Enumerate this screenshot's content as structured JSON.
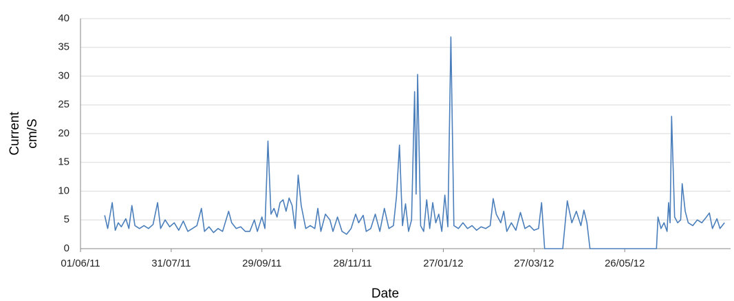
{
  "chart_data": {
    "type": "line",
    "xlabel": "Date",
    "ylabel": [
      "Current",
      "cm/S"
    ],
    "color": "#4a7ebb",
    "grid": true,
    "xlim": [
      "2011-06-01",
      "2012-08-04"
    ],
    "xticks": [
      {
        "value": "2011-06-01",
        "label": "01/06/11"
      },
      {
        "value": "2011-07-31",
        "label": "31/07/11"
      },
      {
        "value": "2011-09-29",
        "label": "29/09/11"
      },
      {
        "value": "2011-11-28",
        "label": "28/11/11"
      },
      {
        "value": "2012-01-27",
        "label": "27/01/12"
      },
      {
        "value": "2012-03-27",
        "label": "27/03/12"
      },
      {
        "value": "2012-05-26",
        "label": "26/05/12"
      }
    ],
    "ylim": [
      0,
      40
    ],
    "yticks": [
      0,
      5,
      10,
      15,
      20,
      25,
      30,
      35,
      40
    ],
    "x": [
      "2011-06-17",
      "2011-06-19",
      "2011-06-22",
      "2011-06-24",
      "2011-06-26",
      "2011-06-28",
      "2011-07-01",
      "2011-07-03",
      "2011-07-05",
      "2011-07-07",
      "2011-07-10",
      "2011-07-13",
      "2011-07-16",
      "2011-07-19",
      "2011-07-22",
      "2011-07-24",
      "2011-07-27",
      "2011-07-30",
      "2011-08-02",
      "2011-08-05",
      "2011-08-08",
      "2011-08-11",
      "2011-08-14",
      "2011-08-17",
      "2011-08-20",
      "2011-08-22",
      "2011-08-25",
      "2011-08-28",
      "2011-08-31",
      "2011-09-03",
      "2011-09-07",
      "2011-09-09",
      "2011-09-12",
      "2011-09-15",
      "2011-09-18",
      "2011-09-21",
      "2011-09-24",
      "2011-09-26",
      "2011-09-29",
      "2011-10-01",
      "2011-10-03",
      "2011-10-05",
      "2011-10-07",
      "2011-10-09",
      "2011-10-11",
      "2011-10-13",
      "2011-10-15",
      "2011-10-17",
      "2011-10-19",
      "2011-10-21",
      "2011-10-23",
      "2011-10-25",
      "2011-10-28",
      "2011-10-31",
      "2011-11-03",
      "2011-11-05",
      "2011-11-07",
      "2011-11-10",
      "2011-11-13",
      "2011-11-15",
      "2011-11-18",
      "2011-11-21",
      "2011-11-24",
      "2011-11-27",
      "2011-11-30",
      "2011-12-02",
      "2011-12-05",
      "2011-12-07",
      "2011-12-10",
      "2011-12-13",
      "2011-12-16",
      "2011-12-19",
      "2011-12-22",
      "2011-12-25",
      "2011-12-27",
      "2011-12-29",
      "2011-12-31",
      "2012-01-02",
      "2012-01-04",
      "2012-01-06",
      "2012-01-08",
      "2012-01-09",
      "2012-01-10",
      "2012-01-12",
      "2012-01-14",
      "2012-01-16",
      "2012-01-18",
      "2012-01-20",
      "2012-01-22",
      "2012-01-24",
      "2012-01-26",
      "2012-01-28",
      "2012-01-30",
      "2012-02-01",
      "2012-02-03",
      "2012-02-06",
      "2012-02-09",
      "2012-02-12",
      "2012-02-15",
      "2012-02-18",
      "2012-02-21",
      "2012-02-24",
      "2012-02-27",
      "2012-02-29",
      "2012-03-02",
      "2012-03-05",
      "2012-03-07",
      "2012-03-09",
      "2012-03-12",
      "2012-03-15",
      "2012-03-18",
      "2012-03-21",
      "2012-03-24",
      "2012-03-27",
      "2012-03-30",
      "2012-04-01",
      "2012-04-03",
      "2012-04-15",
      "2012-04-18",
      "2012-04-21",
      "2012-04-24",
      "2012-04-27",
      "2012-04-29",
      "2012-05-01",
      "2012-05-03",
      "2012-06-16",
      "2012-06-17",
      "2012-06-19",
      "2012-06-21",
      "2012-06-23",
      "2012-06-24",
      "2012-06-25",
      "2012-06-26",
      "2012-06-28",
      "2012-06-30",
      "2012-07-02",
      "2012-07-03",
      "2012-07-05",
      "2012-07-07",
      "2012-07-10",
      "2012-07-13",
      "2012-07-16",
      "2012-07-19",
      "2012-07-21",
      "2012-07-23",
      "2012-07-26",
      "2012-07-28",
      "2012-07-31"
    ],
    "values": [
      5.8,
      3.5,
      8.0,
      3.2,
      4.5,
      3.8,
      5.2,
      3.5,
      7.5,
      4.0,
      3.5,
      4.0,
      3.5,
      4.2,
      8.0,
      3.5,
      5.0,
      3.8,
      4.5,
      3.2,
      4.8,
      3.0,
      3.5,
      4.0,
      7.0,
      3.0,
      3.8,
      2.8,
      3.5,
      3.0,
      6.5,
      4.5,
      3.5,
      3.8,
      3.0,
      3.0,
      5.0,
      3.0,
      5.5,
      3.5,
      18.7,
      6.0,
      7.0,
      5.5,
      8.0,
      8.5,
      6.5,
      8.8,
      7.5,
      3.5,
      12.8,
      7.5,
      3.5,
      4.0,
      3.5,
      7.0,
      3.0,
      6.0,
      5.0,
      3.0,
      5.5,
      3.0,
      2.5,
      3.5,
      6.0,
      4.5,
      5.8,
      3.0,
      3.5,
      6.0,
      3.0,
      7.0,
      3.5,
      4.0,
      9.0,
      18.0,
      4.0,
      7.8,
      3.0,
      5.0,
      27.3,
      9.5,
      30.3,
      4.0,
      3.0,
      8.5,
      3.5,
      8.0,
      4.5,
      6.0,
      3.0,
      9.3,
      3.8,
      36.8,
      4.0,
      3.5,
      4.5,
      3.5,
      4.0,
      3.2,
      3.8,
      3.5,
      4.0,
      8.7,
      6.0,
      4.5,
      6.5,
      3.0,
      4.5,
      3.2,
      6.3,
      3.5,
      4.0,
      3.2,
      3.5,
      8.0,
      0,
      0,
      8.3,
      4.5,
      6.5,
      4.0,
      6.7,
      4.5,
      0,
      0,
      5.5,
      3.5,
      4.5,
      3.0,
      8.0,
      4.5,
      23.0,
      5.5,
      4.5,
      5.0,
      11.3,
      6.5,
      4.5,
      4.0,
      5.0,
      4.5,
      5.5,
      6.2,
      3.5,
      5.2,
      3.5,
      4.5
    ]
  }
}
